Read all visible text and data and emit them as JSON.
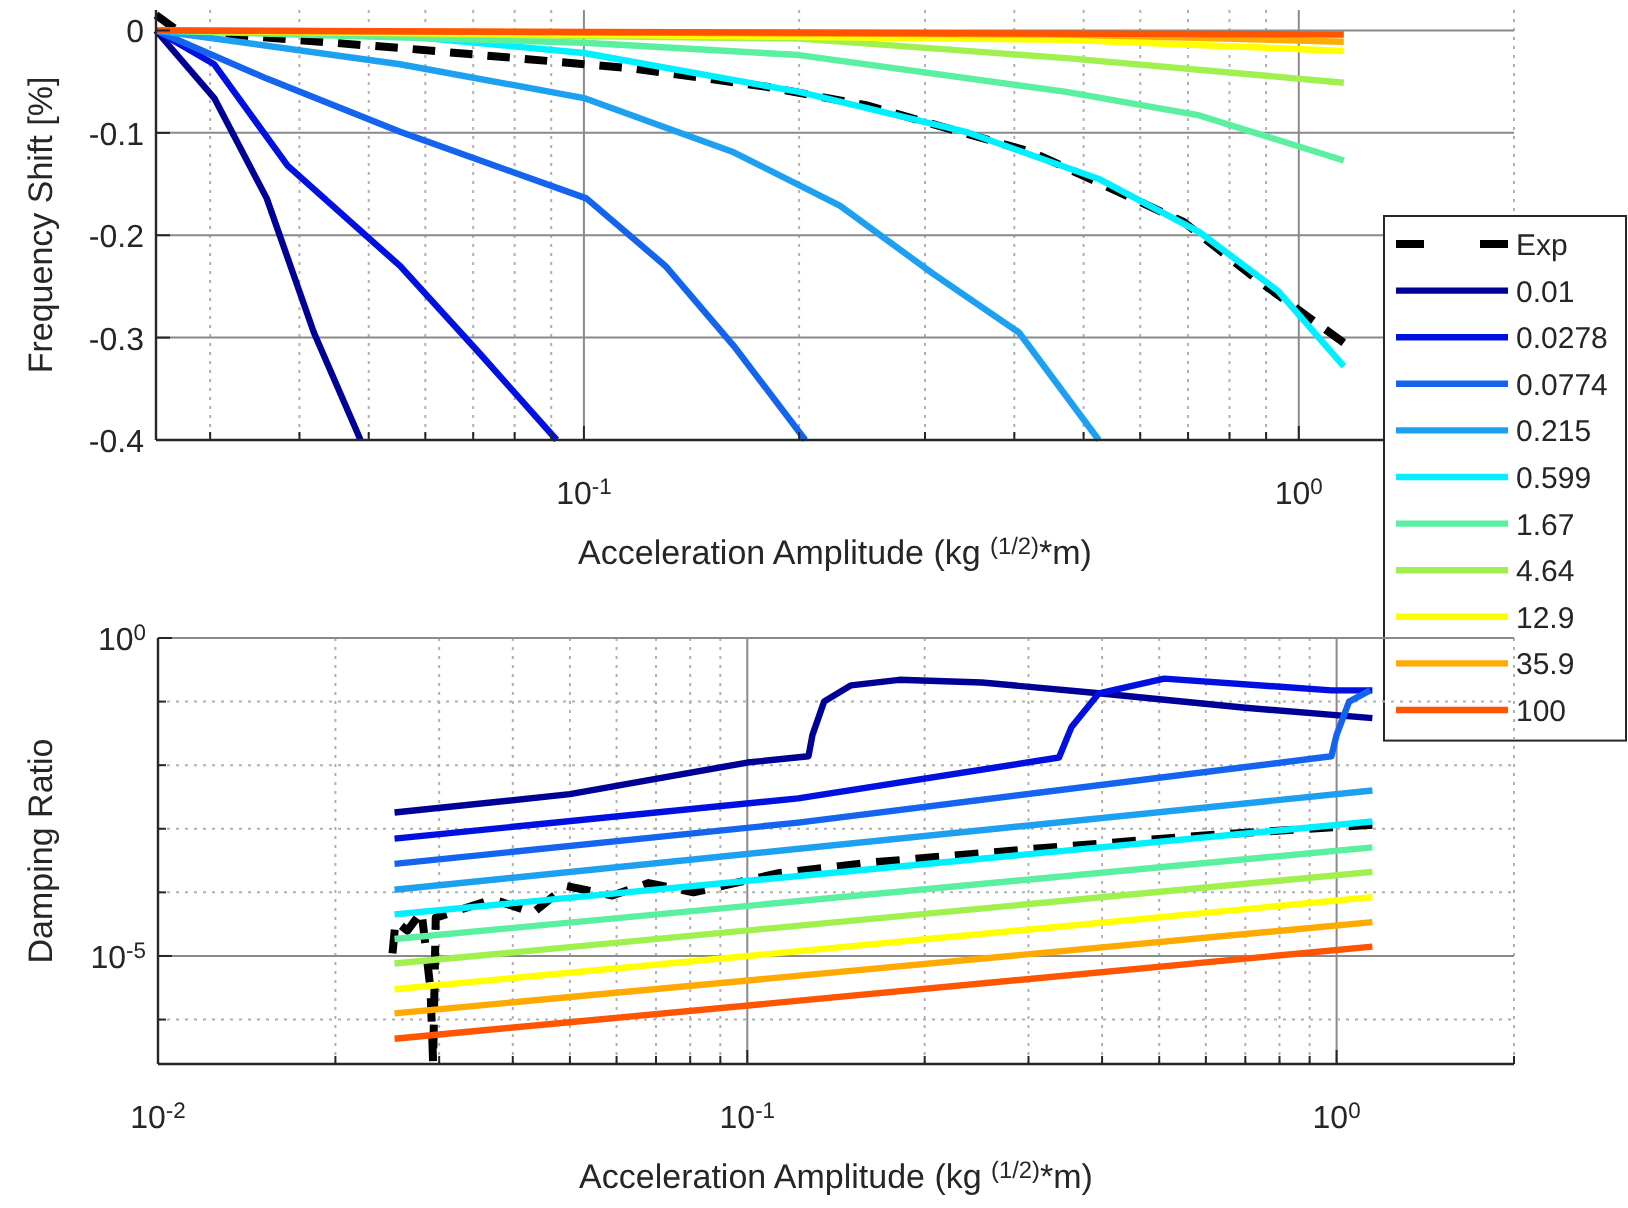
{
  "chart_data": [
    {
      "type": "line",
      "xlabel": "Acceleration Amplitude (kg $^{(1/2)}$*m)",
      "ylabel": "Frequency Shift [%]",
      "log": "x",
      "grid": true,
      "legend": "right",
      "xlim": [
        0.0252,
        2
      ],
      "ylim": [
        -0.4,
        0.02
      ],
      "xticks": [
        {
          "value": 0.03,
          "label": null
        },
        {
          "value": 0.04,
          "label": null
        },
        {
          "value": 0.05,
          "label": null
        },
        {
          "value": 0.06,
          "label": null
        },
        {
          "value": 0.07,
          "label": null
        },
        {
          "value": 0.08,
          "label": null
        },
        {
          "value": 0.09,
          "label": null
        },
        {
          "value": 0.1,
          "label": "10$^{-1}$"
        },
        {
          "value": 0.2,
          "label": null
        },
        {
          "value": 0.3,
          "label": null
        },
        {
          "value": 0.4,
          "label": null
        },
        {
          "value": 0.5,
          "label": null
        },
        {
          "value": 0.6,
          "label": null
        },
        {
          "value": 0.7,
          "label": null
        },
        {
          "value": 0.8,
          "label": null
        },
        {
          "value": 0.9,
          "label": null
        },
        {
          "value": 1,
          "label": "10$^{0}$"
        },
        {
          "value": 2,
          "label": null
        }
      ],
      "yticks": [
        -0.4,
        -0.3,
        -0.2,
        -0.1,
        0
      ],
      "series": [
        {
          "name": "Exp",
          "color": "#000000",
          "line_style": "dashed",
          "x": [
            0.0252,
            0.027,
            0.055,
            0.117,
            0.18,
            0.248,
            0.424,
            0.69,
            0.88,
            1.156
          ],
          "values": [
            0.015,
            0,
            -0.017,
            -0.037,
            -0.055,
            -0.073,
            -0.119,
            -0.187,
            -0.245,
            -0.305
          ]
        },
        {
          "name": "0.01",
          "color": "#000096",
          "x": [
            0.0252,
            0.0304,
            0.036,
            0.0419,
            0.0487
          ],
          "values": [
            0,
            -0.066,
            -0.164,
            -0.295,
            -0.4
          ]
        },
        {
          "name": "0.0278",
          "color": "#0010e0",
          "x": [
            0.0252,
            0.0304,
            0.0385,
            0.0553,
            0.0716,
            0.0916
          ],
          "values": [
            0,
            -0.033,
            -0.132,
            -0.23,
            -0.316,
            -0.4
          ]
        },
        {
          "name": "0.0774",
          "color": "#1464f0",
          "x": [
            0.0252,
            0.036,
            0.0553,
            0.1008,
            0.13,
            0.162,
            0.204
          ],
          "values": [
            0,
            -0.047,
            -0.099,
            -0.164,
            -0.23,
            -0.308,
            -0.4
          ]
        },
        {
          "name": "0.215",
          "color": "#1ea0f0",
          "x": [
            0.0252,
            0.0553,
            0.1,
            0.162,
            0.228,
            0.307,
            0.406,
            0.525
          ],
          "values": [
            0,
            -0.033,
            -0.066,
            -0.119,
            -0.171,
            -0.237,
            -0.295,
            -0.4
          ]
        },
        {
          "name": "0.599",
          "color": "#00f0ff",
          "x": [
            0.0252,
            0.055,
            0.1,
            0.2,
            0.342,
            0.525,
            0.726,
            0.937,
            1.156
          ],
          "values": [
            0,
            -0.005,
            -0.022,
            -0.06,
            -0.099,
            -0.145,
            -0.197,
            -0.255,
            -0.328
          ]
        },
        {
          "name": "1.67",
          "color": "#5af0a0",
          "x": [
            0.0252,
            0.1,
            0.2,
            0.473,
            0.726,
            1.156
          ],
          "values": [
            0,
            -0.012,
            -0.024,
            -0.06,
            -0.083,
            -0.127
          ]
        },
        {
          "name": "4.64",
          "color": "#a0f050",
          "x": [
            0.0252,
            0.2,
            0.473,
            1.156
          ],
          "values": [
            0,
            -0.008,
            -0.027,
            -0.051
          ]
        },
        {
          "name": "12.9",
          "color": "#ffff00",
          "x": [
            0.0252,
            0.473,
            1.156
          ],
          "values": [
            0,
            -0.009,
            -0.02
          ]
        },
        {
          "name": "35.9",
          "color": "#ffaa00",
          "x": [
            0.0252,
            0.473,
            1.156
          ],
          "values": [
            0,
            -0.004,
            -0.011
          ]
        },
        {
          "name": "100",
          "color": "#ff5500",
          "x": [
            0.0252,
            1.156
          ],
          "values": [
            0,
            -0.004
          ]
        }
      ]
    },
    {
      "type": "line",
      "xlabel": "Acceleration Amplitude (kg $^{(1/2)}$*m)",
      "ylabel": "Damping Ratio",
      "log": "xy",
      "grid": true,
      "xlim": [
        0.01,
        2
      ],
      "ylim": [
        2e-07,
        1
      ],
      "xticks": [
        {
          "value": 0.01,
          "label": "10$^{-2}$"
        },
        {
          "value": 0.02,
          "label": null
        },
        {
          "value": 0.03,
          "label": null
        },
        {
          "value": 0.04,
          "label": null
        },
        {
          "value": 0.05,
          "label": null
        },
        {
          "value": 0.06,
          "label": null
        },
        {
          "value": 0.07,
          "label": null
        },
        {
          "value": 0.08,
          "label": null
        },
        {
          "value": 0.09,
          "label": null
        },
        {
          "value": 0.1,
          "label": "10$^{-1}$"
        },
        {
          "value": 0.2,
          "label": null
        },
        {
          "value": 0.3,
          "label": null
        },
        {
          "value": 0.4,
          "label": null
        },
        {
          "value": 0.5,
          "label": null
        },
        {
          "value": 0.6,
          "label": null
        },
        {
          "value": 0.7,
          "label": null
        },
        {
          "value": 0.8,
          "label": null
        },
        {
          "value": 0.9,
          "label": null
        },
        {
          "value": 1,
          "label": "10$^{0}$"
        },
        {
          "value": 2,
          "label": null
        }
      ],
      "yticks": [
        {
          "value": 1e-06,
          "label": null
        },
        {
          "value": 1e-05,
          "label": "10$^{-5}$"
        },
        {
          "value": 0.0001,
          "label": null
        },
        {
          "value": 0.001,
          "label": null
        },
        {
          "value": 0.01,
          "label": null
        },
        {
          "value": 0.1,
          "label": null
        },
        {
          "value": 1,
          "label": "10$^{0}$"
        }
      ],
      "series": [
        {
          "color": "#000000",
          "line_style": "dashed",
          "x": [
            0.025,
            0.0253,
            0.0265,
            0.028,
            0.029,
            0.0293,
            0.0296,
            0.037,
            0.0433,
            0.0493,
            0.059,
            0.068,
            0.081,
            0.113,
            0.159,
            0.303,
            0.58,
            1.15
          ],
          "values": [
            1.1e-05,
            3.5e-05,
            2.5e-05,
            5e-05,
            3e-06,
            2.1e-07,
            4e-05,
            7.8e-05,
            4.8e-05,
            0.000126,
            8.9e-05,
            0.00014,
            0.0001,
            0.0002,
            0.00029,
            0.00048,
            0.00077,
            0.00116
          ]
        },
        {
          "color": "#000096",
          "x": [
            0.0252,
            0.05,
            0.1,
            0.127,
            0.129,
            0.135,
            0.15,
            0.181,
            0.25,
            0.395,
            0.7,
            1.15
          ],
          "values": [
            0.0018,
            0.0035,
            0.011,
            0.0138,
            0.03,
            0.1,
            0.18,
            0.22,
            0.2,
            0.135,
            0.08,
            0.055
          ]
        },
        {
          "color": "#0010e0",
          "x": [
            0.0252,
            0.122,
            0.338,
            0.355,
            0.395,
            0.51,
            0.98,
            1.15
          ],
          "values": [
            0.0007,
            0.003,
            0.0132,
            0.04,
            0.135,
            0.23,
            0.15,
            0.15
          ]
        },
        {
          "color": "#1464f0",
          "x": [
            0.0252,
            0.122,
            0.98,
            1.0,
            1.05,
            1.14
          ],
          "values": [
            0.00028,
            0.00125,
            0.0138,
            0.03,
            0.1,
            0.15
          ]
        },
        {
          "color": "#1ea0f0",
          "x": [
            0.0252,
            1.15
          ],
          "values": [
            0.00011,
            0.004
          ]
        },
        {
          "color": "#00f0ff",
          "x": [
            0.0252,
            1.15
          ],
          "values": [
            4.5e-05,
            0.0013
          ]
        },
        {
          "color": "#5af0a0",
          "x": [
            0.0252,
            1.15
          ],
          "values": [
            1.85e-05,
            0.00051
          ]
        },
        {
          "color": "#a0f050",
          "x": [
            0.0252,
            1.15
          ],
          "values": [
            7.6e-06,
            0.00021
          ]
        },
        {
          "color": "#ffff00",
          "x": [
            0.0252,
            1.15
          ],
          "values": [
            3e-06,
            8.4e-05
          ]
        },
        {
          "color": "#ffaa00",
          "x": [
            0.0252,
            1.15
          ],
          "values": [
            1.25e-06,
            3.4e-05
          ]
        },
        {
          "color": "#ff5500",
          "x": [
            0.0252,
            1.15
          ],
          "values": [
            5e-07,
            1.4e-05
          ]
        }
      ]
    }
  ]
}
